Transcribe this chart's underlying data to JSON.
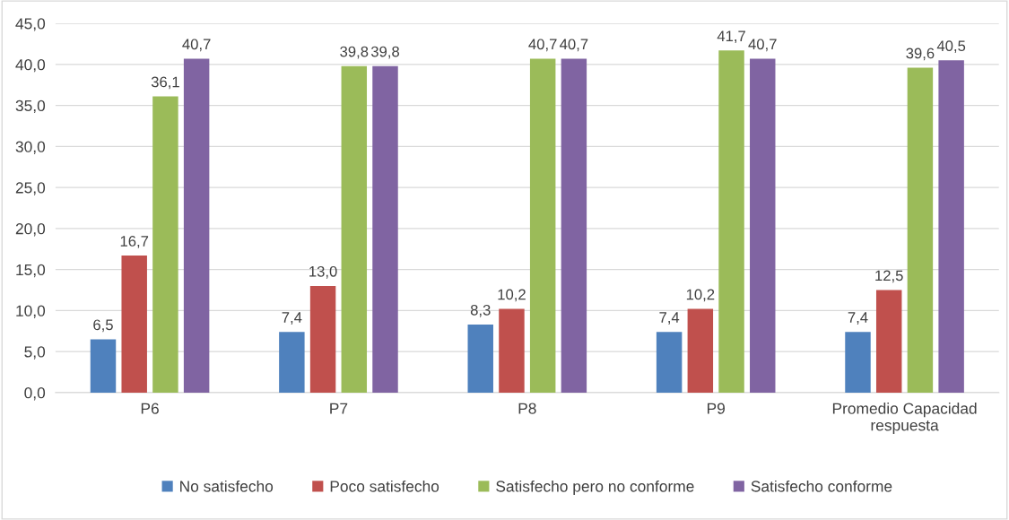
{
  "chart_data": {
    "type": "bar",
    "categories": [
      "P6",
      "P7",
      "P8",
      "P9",
      "Promedio Capacidad\nrespuesta"
    ],
    "series": [
      {
        "name": "No satisfecho",
        "color": "#4f81bd",
        "values": [
          6.5,
          7.4,
          8.3,
          7.4,
          7.4
        ],
        "value_labels": [
          "6,5",
          "7,4",
          "8,3",
          "7,4",
          "7,4"
        ]
      },
      {
        "name": "Poco satisfecho",
        "color": "#c0504d",
        "values": [
          16.7,
          13.0,
          10.2,
          10.2,
          12.5
        ],
        "value_labels": [
          "16,7",
          "13,0",
          "10,2",
          "10,2",
          "12,5"
        ]
      },
      {
        "name": "Satisfecho pero no conforme",
        "color": "#9bbb59",
        "values": [
          36.1,
          39.8,
          40.7,
          41.7,
          39.6
        ],
        "value_labels": [
          "36,1",
          "39,8",
          "40,7",
          "41,7",
          "39,6"
        ]
      },
      {
        "name": "Satisfecho conforme",
        "color": "#8064a2",
        "values": [
          40.7,
          39.8,
          40.7,
          40.7,
          40.5
        ],
        "value_labels": [
          "40,7",
          "39,8",
          "40,7",
          "40,7",
          "40,5"
        ]
      }
    ],
    "ylim": [
      0,
      45
    ],
    "yticks": [
      {
        "value": 0,
        "label": "0,0"
      },
      {
        "value": 5,
        "label": "5,0"
      },
      {
        "value": 10,
        "label": "10,0"
      },
      {
        "value": 15,
        "label": "15,0"
      },
      {
        "value": 20,
        "label": "20,0"
      },
      {
        "value": 25,
        "label": "25,0"
      },
      {
        "value": 30,
        "label": "30,0"
      },
      {
        "value": 35,
        "label": "35,0"
      },
      {
        "value": 40,
        "label": "40,0"
      },
      {
        "value": 45,
        "label": "45,0"
      }
    ],
    "grid": "y",
    "legend": "bottom"
  }
}
